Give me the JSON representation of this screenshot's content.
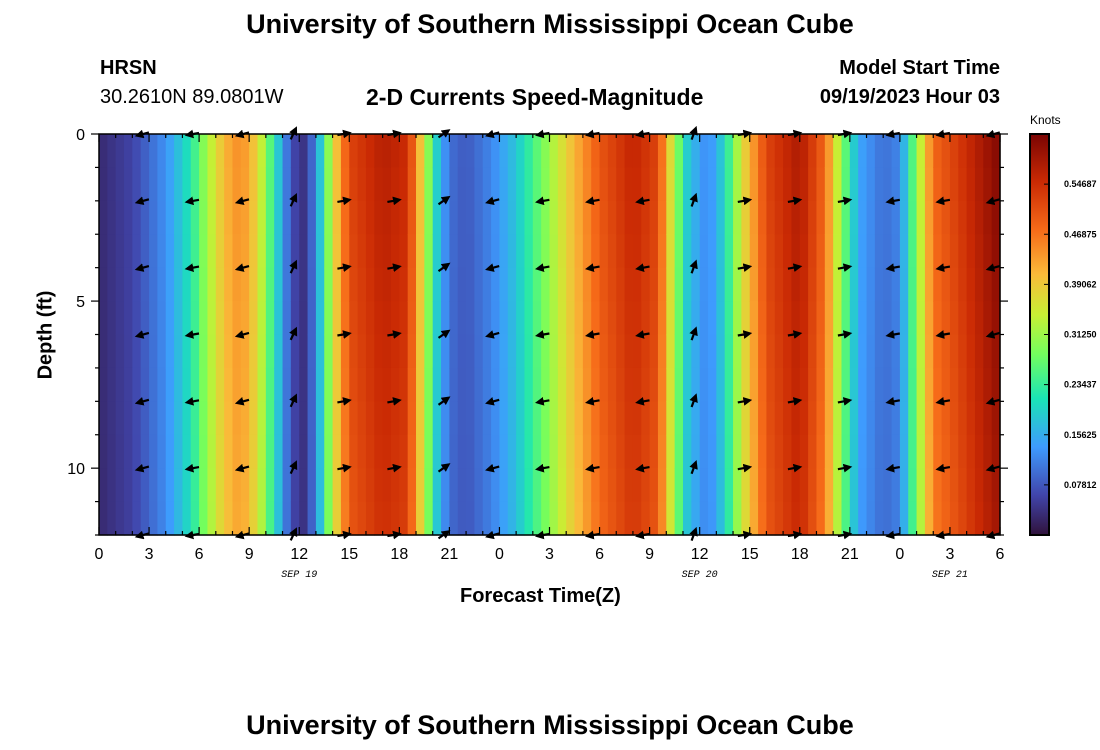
{
  "page_title": "University of Southern Mississippi Ocean Cube",
  "station": {
    "name": "HRSN",
    "coords": "30.2610N  89.0801W"
  },
  "chart_heading": "2-D Currents Speed-Magnitude",
  "model_start": {
    "label": "Model Start Time",
    "value": "09/19/2023 Hour 03"
  },
  "footer_title": "University of Southern Mississippi Ocean Cube",
  "chart_data": {
    "type": "heatmap",
    "title": "2-D Currents Speed-Magnitude",
    "xlabel": "Forecast Time(Z)",
    "ylabel": "Depth (ft)",
    "x_tick_labels": [
      "0",
      "3",
      "6",
      "9",
      "12",
      "15",
      "18",
      "21",
      "0",
      "3",
      "6",
      "9",
      "12",
      "15",
      "18",
      "21",
      "0",
      "3",
      "6"
    ],
    "date_labels": [
      {
        "tick_index": 12,
        "label": "SEP 19"
      },
      {
        "tick_index": 36,
        "label": "SEP 20"
      },
      {
        "tick_index": 51,
        "label": "SEP 21"
      }
    ],
    "x_range_hours": [
      0,
      54
    ],
    "y_ticks": [
      0,
      5,
      10
    ],
    "y_range_ft": [
      0,
      12
    ],
    "colorbar": {
      "unit": "Knots",
      "range": [
        0,
        0.625
      ],
      "tick_labels": [
        "0.54687",
        "0.46875",
        "0.39062",
        "0.31250",
        "0.23437",
        "0.15625",
        "0.07812"
      ],
      "tick_values": [
        0.54687,
        0.46875,
        0.39062,
        0.3125,
        0.23437,
        0.15625,
        0.07812
      ]
    },
    "speed_profile_surface": [
      {
        "t": 0,
        "v": 0.03
      },
      {
        "t": 2,
        "v": 0.06
      },
      {
        "t": 4,
        "v": 0.13
      },
      {
        "t": 5.5,
        "v": 0.22
      },
      {
        "t": 6.5,
        "v": 0.32
      },
      {
        "t": 7.5,
        "v": 0.41
      },
      {
        "t": 8.5,
        "v": 0.45
      },
      {
        "t": 9.5,
        "v": 0.38
      },
      {
        "t": 10.5,
        "v": 0.22
      },
      {
        "t": 11.5,
        "v": 0.07
      },
      {
        "t": 12.3,
        "v": 0.04
      },
      {
        "t": 13,
        "v": 0.12
      },
      {
        "t": 14,
        "v": 0.36
      },
      {
        "t": 15,
        "v": 0.52
      },
      {
        "t": 17,
        "v": 0.57
      },
      {
        "t": 18.5,
        "v": 0.55
      },
      {
        "t": 19.5,
        "v": 0.35
      },
      {
        "t": 20.3,
        "v": 0.18
      },
      {
        "t": 21,
        "v": 0.1
      },
      {
        "t": 22,
        "v": 0.08
      },
      {
        "t": 23.5,
        "v": 0.12
      },
      {
        "t": 25,
        "v": 0.18
      },
      {
        "t": 26.5,
        "v": 0.28
      },
      {
        "t": 28,
        "v": 0.38
      },
      {
        "t": 30,
        "v": 0.5
      },
      {
        "t": 32,
        "v": 0.56
      },
      {
        "t": 33.5,
        "v": 0.52
      },
      {
        "t": 34.5,
        "v": 0.32
      },
      {
        "t": 35.3,
        "v": 0.18
      },
      {
        "t": 36.5,
        "v": 0.12
      },
      {
        "t": 37.5,
        "v": 0.2
      },
      {
        "t": 38.5,
        "v": 0.36
      },
      {
        "t": 40,
        "v": 0.52
      },
      {
        "t": 42,
        "v": 0.58
      },
      {
        "t": 43.5,
        "v": 0.48
      },
      {
        "t": 44.5,
        "v": 0.3
      },
      {
        "t": 45.5,
        "v": 0.15
      },
      {
        "t": 47,
        "v": 0.1
      },
      {
        "t": 48,
        "v": 0.12
      },
      {
        "t": 49,
        "v": 0.3
      },
      {
        "t": 50,
        "v": 0.48
      },
      {
        "t": 52,
        "v": 0.55
      },
      {
        "t": 54,
        "v": 0.62
      }
    ],
    "vector_times": [
      3,
      6,
      9,
      12,
      15,
      18,
      21,
      24,
      27,
      30,
      33,
      36,
      39,
      42,
      45,
      48,
      51,
      54
    ],
    "vector_depths_ft": [
      0,
      2,
      4,
      6,
      8,
      10,
      12
    ],
    "vector_angles_deg": [
      195,
      190,
      195,
      65,
      10,
      10,
      35,
      195,
      190,
      190,
      190,
      70,
      10,
      10,
      10,
      190,
      190,
      195
    ]
  }
}
